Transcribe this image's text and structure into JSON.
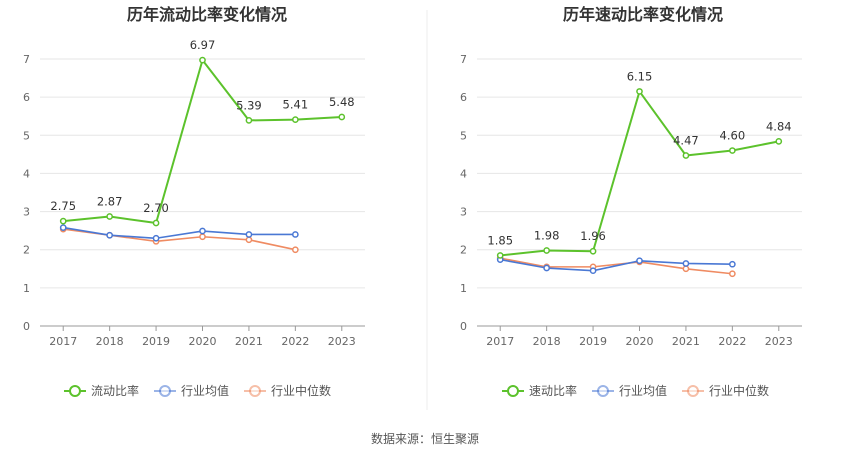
{
  "source": "数据来源：恒生聚源",
  "chart_data": [
    {
      "type": "line",
      "title": "历年流动比率变化情况",
      "categories": [
        "2017",
        "2018",
        "2019",
        "2020",
        "2021",
        "2022",
        "2023"
      ],
      "ylim": [
        0,
        7
      ],
      "yticks": [
        "0",
        "1",
        "2",
        "3",
        "4",
        "5",
        "6",
        "7"
      ],
      "grid": true,
      "legend_position": "bottom",
      "series": [
        {
          "name": "流动比率",
          "color": "#5cc22c",
          "values": [
            2.75,
            2.87,
            2.7,
            6.97,
            5.39,
            5.41,
            5.48
          ],
          "labels": [
            "2.75",
            "2.87",
            "2.70",
            "6.97",
            "5.39",
            "5.41",
            "5.48"
          ]
        },
        {
          "name": "行业均值",
          "color": "#4a78d4",
          "values": [
            2.58,
            2.38,
            2.3,
            2.49,
            2.4,
            2.4,
            null
          ]
        },
        {
          "name": "行业中位数",
          "color": "#ef8b62",
          "values": [
            2.54,
            2.38,
            2.22,
            2.34,
            2.26,
            2.0,
            null
          ]
        }
      ]
    },
    {
      "type": "line",
      "title": "历年速动比率变化情况",
      "categories": [
        "2017",
        "2018",
        "2019",
        "2020",
        "2021",
        "2022",
        "2023"
      ],
      "ylim": [
        0,
        7
      ],
      "yticks": [
        "0",
        "1",
        "2",
        "3",
        "4",
        "5",
        "6",
        "7"
      ],
      "grid": true,
      "legend_position": "bottom",
      "series": [
        {
          "name": "速动比率",
          "color": "#5cc22c",
          "values": [
            1.85,
            1.98,
            1.96,
            6.15,
            4.47,
            4.6,
            4.84
          ],
          "labels": [
            "1.85",
            "1.98",
            "1.96",
            "6.15",
            "4.47",
            "4.60",
            "4.84"
          ]
        },
        {
          "name": "行业均值",
          "color": "#4a78d4",
          "values": [
            1.74,
            1.52,
            1.45,
            1.71,
            1.64,
            1.62,
            null
          ]
        },
        {
          "name": "行业中位数",
          "color": "#ef8b62",
          "values": [
            1.78,
            1.55,
            1.55,
            1.68,
            1.5,
            1.37,
            null
          ]
        }
      ]
    }
  ]
}
